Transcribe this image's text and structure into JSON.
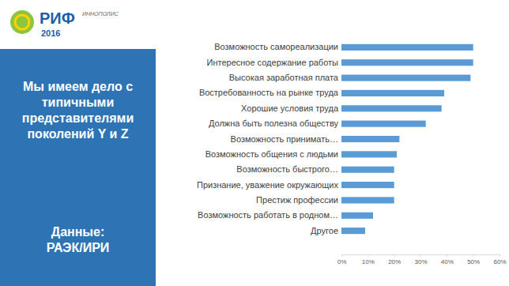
{
  "chart_data": {
    "type": "bar",
    "orientation": "horizontal",
    "categories": [
      "Возможность самореализации",
      "Интересное содержание работы",
      "Высокая заработная плата",
      "Востребованность на рынке труда",
      "Хорошие условия труда",
      "Должна быть полезна обществу",
      "Возможность принимать…",
      "Возможность общения с людьми",
      "Возможность быстрого…",
      "Признание, уважение окружающих",
      "Престиж профессии",
      "Возможность работать в родном…",
      "Другое"
    ],
    "values": [
      50,
      50,
      49,
      39,
      38,
      32,
      22,
      21,
      20,
      20,
      20,
      12,
      9
    ],
    "color": "#5b9bd5",
    "xlim": [
      0,
      60
    ],
    "xticks": [
      {
        "value": 0,
        "label": "0%"
      },
      {
        "value": 10,
        "label": "10%"
      },
      {
        "value": 20,
        "label": "20%"
      },
      {
        "value": 30,
        "label": "30%"
      },
      {
        "value": 40,
        "label": "40%"
      },
      {
        "value": 50,
        "label": "50%"
      },
      {
        "value": 60,
        "label": "60%"
      }
    ],
    "grid": false
  },
  "slide": {
    "heading": "Мы имеем дело с типичными представителями поколений Y и Z",
    "source_label": "Данные:",
    "source": "РАЭК/ИРИ",
    "logo": {
      "name": "РИФ",
      "year": "2016",
      "place": "ИННОПОЛИС"
    }
  }
}
